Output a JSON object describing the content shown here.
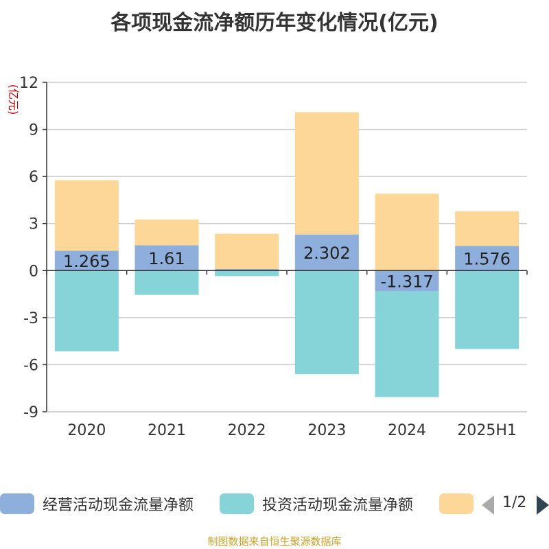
{
  "chart_data": {
    "type": "bar",
    "stacked": true,
    "title": "各项现金流净额历年变化情况(亿元)",
    "ylabel": "(亿元)",
    "categories": [
      "2020",
      "2021",
      "2022",
      "2023",
      "2024",
      "2025H1"
    ],
    "ylim": [
      -9,
      12
    ],
    "yticks": [
      12,
      9,
      6,
      3,
      0,
      -3,
      -6,
      -9
    ],
    "grid": true,
    "series": [
      {
        "name": "经营活动现金流量净额",
        "color": "#8eaedb",
        "values": [
          1.265,
          1.61,
          0.1,
          2.302,
          -1.317,
          1.576
        ],
        "labels": [
          "1.265",
          "1.61",
          "",
          "2.302",
          "-1.317",
          "1.576"
        ]
      },
      {
        "name": "投资活动现金流量净额",
        "color": "#86d4d8",
        "values": [
          -5.15,
          -1.55,
          -0.35,
          -6.6,
          -6.75,
          -5.0
        ]
      },
      {
        "name": "",
        "color": "#fdd797",
        "values": [
          4.5,
          1.65,
          2.25,
          7.8,
          4.9,
          2.2
        ]
      }
    ],
    "legend_position": "bottom"
  },
  "legend": {
    "items": [
      {
        "label": "经营活动现金流量净额",
        "color": "#8eaedb"
      },
      {
        "label": "投资活动现金流量净额",
        "color": "#86d4d8"
      },
      {
        "label": "",
        "color": "#fdd797"
      }
    ],
    "page": "1/2"
  },
  "footer": {
    "source": "制图数据来自恒生聚源数据库"
  }
}
